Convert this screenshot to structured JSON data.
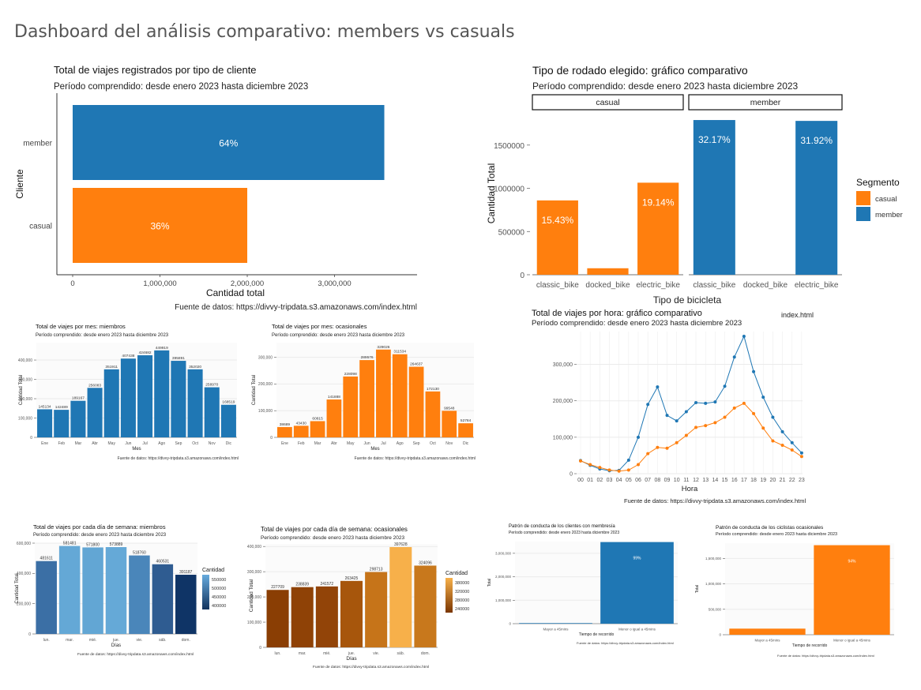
{
  "dashboard": {
    "title": "Dashboard  del análisis comparativo: members vs casuals"
  },
  "colors": {
    "member": "#1f77b4",
    "casual": "#ff7f0e"
  },
  "chart_data": [
    {
      "id": "c1",
      "type": "bar",
      "orientation": "horizontal",
      "title": "Total de viajes registrados por tipo de cliente",
      "subtitle": "Período comprendido: desde enero 2023 hasta diciembre 2023",
      "xlabel": "Cantidad total",
      "ylabel": "Cliente",
      "categories": [
        "member",
        "casual"
      ],
      "values": [
        3570000,
        2000000
      ],
      "labels": [
        "64%",
        "36%"
      ],
      "colors": [
        "#1f77b4",
        "#ff7f0e"
      ],
      "xlim": [
        0,
        3900000
      ],
      "xticks": [
        0,
        1000000,
        2000000,
        3000000
      ],
      "xtick_labels": [
        "0",
        "1,000,000",
        "2,000,000",
        "3,000,000"
      ],
      "source": "Fuente de datos: https://divvy-tripdata.s3.amazonaws.com/index.html"
    },
    {
      "id": "c2",
      "type": "bar",
      "faceted": true,
      "title": "Tipo de rodado elegido: gráfico comparativo",
      "subtitle": "Período comprendido: desde enero 2023 hasta diciembre 2023",
      "xlabel": "Tipo de bicicleta",
      "ylabel": "Cantidad Total",
      "legend_title": "Segmento",
      "legend": [
        "casual",
        "member"
      ],
      "legend_position": "right",
      "ylim": [
        0,
        1900000
      ],
      "yticks": [
        0,
        500000,
        1000000,
        1500000
      ],
      "ytick_labels": [
        "0",
        "500000",
        "1000000",
        "1500000"
      ],
      "categories": [
        "classic_bike",
        "docked_bike",
        "electric_bike"
      ],
      "facets": [
        {
          "name": "casual",
          "values": [
            860000,
            75000,
            1065000
          ],
          "labels": [
            "15.43%",
            "",
            "19.14%"
          ]
        },
        {
          "name": "member",
          "values": [
            1790000,
            0,
            1780000
          ],
          "labels": [
            "32.17%",
            "",
            "31.92%"
          ]
        }
      ]
    },
    {
      "id": "c3",
      "type": "bar",
      "title": "Total de viajes por mes: miembros",
      "subtitle": "Período comprendido: desde enero 2023 hasta diciembre 2023",
      "xlabel": "Mes",
      "ylabel": "Cantidad Total",
      "categories": [
        "Ene",
        "Feb",
        "Mar",
        "Abr",
        "May",
        "Jun",
        "Jul",
        "Ago",
        "Sep",
        "Oct",
        "Nov",
        "Dic"
      ],
      "values": [
        145134,
        142489,
        189167,
        256083,
        351911,
        407438,
        424682,
        449919,
        395891,
        352020,
        258970,
        168519
      ],
      "labels": [
        "145134",
        "142489",
        "189167",
        "256083",
        "351911",
        "407438",
        "424682",
        "449919",
        "395891",
        "352020",
        "258970",
        "168519"
      ],
      "ylim": [
        0,
        490000
      ],
      "yticks": [
        0,
        100000,
        200000,
        300000,
        400000
      ],
      "ytick_labels": [
        "0",
        "100,000",
        "200,000",
        "300,000",
        "400,000"
      ],
      "source": "Fuente de datos: https://divvy-tripdata.s3.amazonaws.com/index.html"
    },
    {
      "id": "c4",
      "type": "bar",
      "title": "Total de viajes por mes: ocasionales",
      "subtitle": "Período comprendido: desde enero 2023 hasta diciembre 2023",
      "xlabel": "Mes",
      "ylabel": "Cantidad Total",
      "categories": [
        "Ene",
        "Feb",
        "Mar",
        "Abr",
        "May",
        "Jun",
        "Jul",
        "Ago",
        "Sep",
        "Oct",
        "Nov",
        "Dic"
      ],
      "values": [
        38689,
        43430,
        60815,
        141888,
        228098,
        289576,
        329026,
        311534,
        264637,
        172130,
        99548,
        52784
      ],
      "labels": [
        "38689",
        "43430",
        "60815",
        "141888",
        "228098",
        "289576",
        "329026",
        "311534",
        "264637",
        "172130",
        "99548",
        "52784"
      ],
      "ylim": [
        0,
        355000
      ],
      "yticks": [
        0,
        100000,
        200000,
        300000
      ],
      "ytick_labels": [
        "0",
        "100,000",
        "200,000",
        "300,000"
      ],
      "source": "Fuente de datos: https://divvy-tripdata.s3.amazonaws.com/index.html"
    },
    {
      "id": "c5",
      "type": "line",
      "title": "Total de viajes por hora: gráfico comparativo",
      "subtitle": "Período comprendido: desde enero 2023 hasta diciembre 2023",
      "xlabel": "Hora",
      "ylabel": "",
      "categories": [
        "00",
        "01",
        "02",
        "03",
        "04",
        "05",
        "06",
        "07",
        "08",
        "09",
        "10",
        "11",
        "12",
        "13",
        "14",
        "15",
        "16",
        "17",
        "18",
        "19",
        "20",
        "21",
        "22",
        "23"
      ],
      "series": [
        {
          "name": "member",
          "color": "#1f77b4",
          "values": [
            36000,
            23000,
            13000,
            8000,
            9000,
            37000,
            100000,
            190000,
            238000,
            160000,
            145000,
            170000,
            195000,
            193000,
            197000,
            240000,
            320000,
            377000,
            280000,
            210000,
            155000,
            115000,
            85000,
            57000
          ]
        },
        {
          "name": "casual",
          "color": "#ff7f0e",
          "values": [
            35000,
            25000,
            17000,
            10000,
            7000,
            10000,
            25000,
            55000,
            72000,
            70000,
            85000,
            105000,
            127000,
            132000,
            140000,
            155000,
            180000,
            193000,
            165000,
            125000,
            90000,
            78000,
            65000,
            47000
          ]
        }
      ],
      "ylim": [
        0,
        390000
      ],
      "yticks": [
        0,
        100000,
        200000,
        300000
      ],
      "ytick_labels": [
        "0",
        "100,000",
        "200,000",
        "300,000"
      ],
      "source": "Fuente de datos: https://divvy-tripdata.s3.amazonaws.com/index.html",
      "note": "index.html"
    },
    {
      "id": "c6",
      "type": "bar",
      "title": "Total de viajes por cada día de semana: miembros",
      "subtitle": "Período comprendido: desde enero 2023 hasta diciembre 2023",
      "xlabel": "Días",
      "ylabel": "Cantidad Total",
      "categories": [
        "lun.",
        "mar.",
        "mié.",
        "jue.",
        "vie.",
        "sáb.",
        "dom."
      ],
      "values": [
        481611,
        581481,
        571800,
        573889,
        518760,
        460531,
        391187
      ],
      "labels": [
        "481611",
        "581481",
        "571800",
        "573889",
        "518760",
        "460531",
        "391187"
      ],
      "colors": [
        "#3b6fa5",
        "#64a8d6",
        "#62a6d4",
        "#65a9d7",
        "#4a86ba",
        "#2f5c91",
        "#0f3466"
      ],
      "legend_title": "Cantidad",
      "legend_labels": [
        "550000",
        "500000",
        "450000",
        "400000"
      ],
      "legend_gradient": [
        "#66aadd",
        "#13345e"
      ],
      "ylim": [
        0,
        600000
      ],
      "yticks": [
        0,
        200000,
        400000,
        600000
      ],
      "ytick_labels": [
        "0",
        "200,000",
        "400,000",
        "600,000"
      ],
      "source": "Fuente de datos: https://divvy-tripdata.s3.amazonaws.com/index.html"
    },
    {
      "id": "c7",
      "type": "bar",
      "title": "Total de viajes por cada día de semana: ocasionales",
      "subtitle": "Período comprendido: desde enero 2023 hasta diciembre 2023",
      "xlabel": "Días",
      "ylabel": "Cantidad Total",
      "categories": [
        "lun.",
        "mar.",
        "mié.",
        "jue.",
        "vie.",
        "sáb.",
        "dom."
      ],
      "values": [
        227709,
        238839,
        241572,
        263425,
        298713,
        397628,
        324096
      ],
      "labels": [
        "227709",
        "238839",
        "241572",
        "263425",
        "298713",
        "397628",
        "324096"
      ],
      "colors": [
        "#8a3e04",
        "#8f4206",
        "#924408",
        "#a7560c",
        "#c67419",
        "#f7b04a",
        "#c8781c"
      ],
      "legend_title": "Cantidad",
      "legend_labels": [
        "380000",
        "320000",
        "280000",
        "240000"
      ],
      "legend_gradient": [
        "#f7b04a",
        "#7a3602"
      ],
      "ylim": [
        0,
        410000
      ],
      "yticks": [
        0,
        100000,
        200000,
        300000,
        400000
      ],
      "ytick_labels": [
        "0",
        "100,000",
        "200,000",
        "300,000",
        "400,000"
      ],
      "source": "Fuente de datos: https://divvy-tripdata.s3.amazonaws.com/index.html"
    },
    {
      "id": "c8",
      "type": "bar",
      "title": "Patrón de conducta de los clientes  con membresía",
      "subtitle": "Período comprendido: desde enero 2023 hasta diciembre 2023",
      "xlabel": "Tiempo de recorrido",
      "ylabel": "Total",
      "categories": [
        "Mayor a 45mins",
        "Menor o igual a 45mins"
      ],
      "values": [
        25000,
        3480000
      ],
      "labels": [
        "1%",
        "99%"
      ],
      "colors": [
        "#1f77b4",
        "#1f77b4"
      ],
      "ylim": [
        0,
        3500000
      ],
      "yticks": [
        0,
        1000000,
        2000000,
        3000000
      ],
      "ytick_labels": [
        "0",
        "1,000,000",
        "2,000,000",
        "3,000,000"
      ],
      "source": "Fuente de datos: https://divvy-tripdata.s3.amazonaws.com/index.html"
    },
    {
      "id": "c9",
      "type": "bar",
      "title": "Patrón de conducta de los ciclistas ocasionales",
      "subtitle": "Período comprendido: desde enero 2023 hasta diciembre 2023",
      "xlabel": "Tiempo de recorrido",
      "ylabel": "Total",
      "categories": [
        "Mayor a 45mins",
        "Menor o igual a 45mins"
      ],
      "values": [
        120000,
        1760000
      ],
      "labels": [
        "6%",
        "94%"
      ],
      "colors": [
        "#ff7f0e",
        "#ff7f0e"
      ],
      "ylim": [
        0,
        1800000
      ],
      "yticks": [
        0,
        500000,
        1000000,
        1500000
      ],
      "ytick_labels": [
        "0",
        "500,000",
        "1,000,000",
        "1,500,000"
      ],
      "source": "Fuente de datos: https://divvy-tripdata.s3.amazonaws.com/index.html"
    }
  ]
}
